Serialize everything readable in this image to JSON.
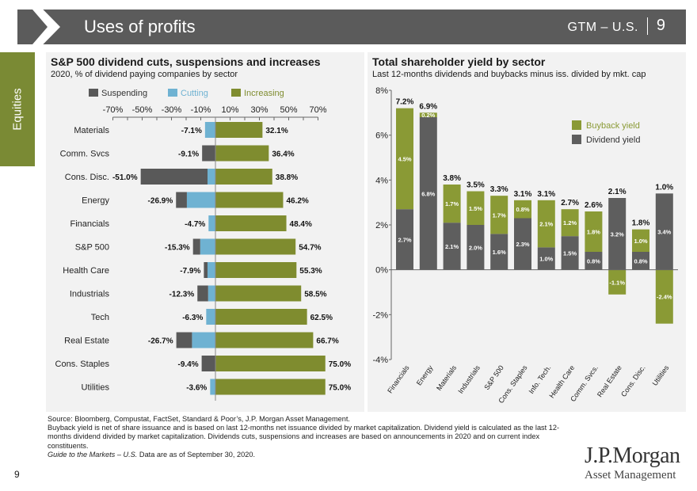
{
  "header": {
    "title": "Uses of profits",
    "gtm": "GTM – U.S.",
    "page": "9"
  },
  "sidetab": {
    "label": "Equities"
  },
  "left": {
    "title": "S&P 500 dividend cuts, suspensions and increases",
    "subtitle": "2020, % of dividend paying companies by sector"
  },
  "right": {
    "title": "Total shareholder yield by sector",
    "subtitle": "Last 12-months dividends and buybacks minus iss. divided by mkt. cap"
  },
  "colors": {
    "suspending": "#595959",
    "cutting": "#6fb2d2",
    "increasing": "#7f8c2f",
    "buyback": "#8a9a35",
    "dividend": "#5e5e5e",
    "olive": "#7a8a34"
  },
  "chart_data": [
    {
      "type": "bar",
      "orientation": "horizontal",
      "title": "S&P 500 dividend cuts, suspensions and increases",
      "subtitle": "2020, % of dividend paying companies by sector",
      "legend": [
        "Suspending",
        "Cutting",
        "Increasing"
      ],
      "xticks": [
        "-70%",
        "-50%",
        "-30%",
        "-10%",
        "10%",
        "30%",
        "50%",
        "70%"
      ],
      "xlim": [
        -70,
        70
      ],
      "categories": [
        "Materials",
        "Comm. Svcs",
        "Cons. Disc.",
        "Energy",
        "Financials",
        "S&P 500",
        "Health Care",
        "Industrials",
        "Tech",
        "Real Estate",
        "Cons. Staples",
        "Utilities"
      ],
      "suspending": [
        0,
        9.1,
        45.6,
        7.4,
        0,
        4.9,
        2.5,
        7.3,
        0,
        10.7,
        9.4,
        0
      ],
      "cutting": [
        7.1,
        0,
        5.4,
        19.5,
        4.7,
        10.4,
        5.4,
        5.0,
        6.3,
        16.0,
        0,
        3.6
      ],
      "neg_labels": [
        "-7.1%",
        "-9.1%",
        "-51.0%",
        "-26.9%",
        "-4.7%",
        "-15.3%",
        "-7.9%",
        "-12.3%",
        "-6.3%",
        "-26.7%",
        "-9.4%",
        "-3.6%"
      ],
      "increasing": [
        32.1,
        36.4,
        38.8,
        46.2,
        48.4,
        54.7,
        55.3,
        58.5,
        62.5,
        66.7,
        75.0,
        75.0
      ],
      "pos_labels": [
        "32.1%",
        "36.4%",
        "38.8%",
        "46.2%",
        "48.4%",
        "54.7%",
        "55.3%",
        "58.5%",
        "62.5%",
        "66.7%",
        "75.0%",
        "75.0%"
      ]
    },
    {
      "type": "bar",
      "stacked": true,
      "title": "Total shareholder yield by sector",
      "subtitle": "Last 12-months dividends and buybacks minus iss. divided by mkt. cap",
      "legend": [
        "Buyback yield",
        "Dividend yield"
      ],
      "ylim": [
        -4,
        8
      ],
      "yticks": [
        "8%",
        "6%",
        "4%",
        "2%",
        "0%",
        "-2%",
        "-4%"
      ],
      "categories": [
        "Financials",
        "Energy",
        "Materials",
        "Industrials",
        "S&P 500",
        "Cons. Staples",
        "Info. Tech.",
        "Health Care",
        "Comm. Svcs.",
        "Real Estate",
        "Cons. Disc.",
        "Utilities"
      ],
      "dividend": [
        2.7,
        6.8,
        2.1,
        2.0,
        1.6,
        2.3,
        1.0,
        1.5,
        0.8,
        3.2,
        0.8,
        3.4
      ],
      "buyback": [
        4.5,
        0.2,
        1.7,
        1.5,
        1.7,
        0.8,
        2.1,
        1.2,
        1.8,
        -1.1,
        1.0,
        -2.4
      ],
      "dividend_labels": [
        "2.7%",
        "6.8%",
        "2.1%",
        "2.0%",
        "1.6%",
        "2.3%",
        "1.0%",
        "1.5%",
        "0.8%",
        "3.2%",
        "0.8%",
        "3.4%"
      ],
      "buyback_labels": [
        "4.5%",
        "0.2%",
        "1.7%",
        "1.5%",
        "1.7%",
        "0.8%",
        "2.1%",
        "1.2%",
        "1.8%",
        "-1.1%",
        "1.0%",
        "-2.4%"
      ],
      "total_labels": [
        "7.2%",
        "6.9%",
        "3.8%",
        "3.5%",
        "3.3%",
        "3.1%",
        "3.1%",
        "2.7%",
        "2.6%",
        "2.1%",
        "1.8%",
        "1.0%"
      ]
    }
  ],
  "footnotes": {
    "source": "Source: Bloomberg, Compustat, FactSet, Standard & Poor’s, J.P. Morgan Asset Management.",
    "note1": "Buyback yield is net of share issuance and is based on last 12-months net issuance divided by market capitalization. Dividend yield is calculated as the last 12-months dividend divided by market capitalization. Dividends cuts, suspensions and increases are based on announcements in 2020 and on current index constituents.",
    "guide": "Guide to the Markets – U.S.",
    "date_suffix": " Data are as of September 30, 2020."
  },
  "page_number": "9",
  "logo": {
    "name": "J.P.Morgan",
    "sub": "Asset Management"
  }
}
